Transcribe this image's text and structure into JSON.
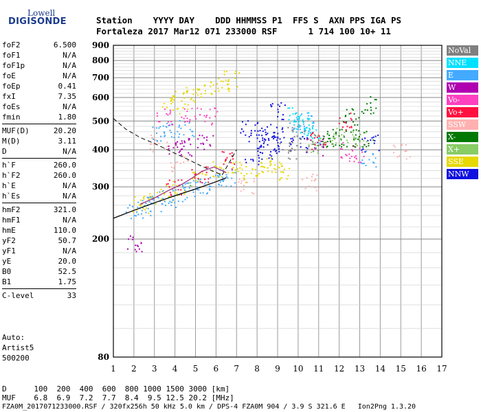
{
  "logo": {
    "top": "Lowell",
    "main": "DIGISONDE"
  },
  "header": {
    "line1": "Station    YYYY DAY    DDD HHMMSS P1  FFS S  AXN PPS IGA PS",
    "line2": "Fortaleza 2017 Mar12 071 233000 RSF      1 714 100 10+ 11"
  },
  "params": [
    {
      "name": "foF2",
      "value": "6.500"
    },
    {
      "name": "foF1",
      "value": "N/A"
    },
    {
      "name": "foF1p",
      "value": "N/A"
    },
    {
      "name": "foE",
      "value": "N/A"
    },
    {
      "name": "foEp",
      "value": "0.41"
    },
    {
      "name": "fxI",
      "value": "7.35"
    },
    {
      "name": "foEs",
      "value": "N/A"
    },
    {
      "name": "fmin",
      "value": "1.80"
    },
    {
      "sep": true
    },
    {
      "name": "MUF(D)",
      "value": "20.20"
    },
    {
      "name": "M(D)",
      "value": "3.11"
    },
    {
      "name": "D",
      "value": "N/A"
    },
    {
      "sep": true
    },
    {
      "name": "h`F",
      "value": "260.0"
    },
    {
      "name": "h`F2",
      "value": "260.0"
    },
    {
      "name": "h`E",
      "value": "N/A"
    },
    {
      "name": "h`Es",
      "value": "N/A"
    },
    {
      "sep": true
    },
    {
      "name": "hmF2",
      "value": "321.0"
    },
    {
      "name": "hmF1",
      "value": "N/A"
    },
    {
      "name": "hmE",
      "value": "110.0"
    },
    {
      "name": "yF2",
      "value": "50.7"
    },
    {
      "name": "yF1",
      "value": "N/A"
    },
    {
      "name": "yE",
      "value": "20.0"
    },
    {
      "name": "B0",
      "value": "52.5"
    },
    {
      "name": "B1",
      "value": "1.75"
    },
    {
      "sep": true
    },
    {
      "name": "C-level",
      "value": "33"
    }
  ],
  "auto": {
    "line1": "Auto:",
    "line2": "Artist5",
    "line3": "500200"
  },
  "footer": {
    "d_line": "D      100  200  400  600  800 1000 1500 3000 [km]",
    "muf_line": "MUF    6.8  6.9  7.2  7.7  8.4  9.5 12.5 20.2 [MHz]",
    "file_line": "FZA0M_2017071233000.RSF / 320fx256h 50 kHz 5.0 km / DPS-4 FZA0M 904 / 3.9 S 321.6 E   Ion2Png 1.3.20"
  },
  "legend": [
    {
      "label": "NoVal",
      "color": "#808080"
    },
    {
      "label": "NNE",
      "color": "#00e0ff"
    },
    {
      "label": "E",
      "color": "#44aaff"
    },
    {
      "label": "W",
      "color": "#b000b0"
    },
    {
      "label": "Vo-",
      "color": "#ff40c0"
    },
    {
      "label": "Vo+",
      "color": "#ff1040"
    },
    {
      "label": "SSW",
      "color": "#ffb0b0"
    },
    {
      "label": "X-",
      "color": "#007800"
    },
    {
      "label": "X+",
      "color": "#88cc66"
    },
    {
      "label": "SSE",
      "color": "#e6d800"
    },
    {
      "label": "NNW",
      "color": "#1010e0"
    }
  ],
  "chart_data": {
    "type": "scatter",
    "title": "",
    "xlabel": "",
    "ylabel": "",
    "xlim": [
      1,
      17
    ],
    "ylim": [
      80,
      900
    ],
    "y_scale": "log",
    "x_ticks": [
      1,
      2,
      3,
      4,
      5,
      6,
      7,
      8,
      9,
      10,
      11,
      12,
      13,
      14,
      15,
      16,
      17
    ],
    "y_ticks": [
      80,
      200,
      300,
      400,
      500,
      600,
      700,
      800,
      900
    ],
    "grid": true,
    "legend_position": "right",
    "series": [
      {
        "name": "SSE",
        "points": [
          [
            2.3,
            262
          ],
          [
            2.8,
            270
          ],
          [
            3.5,
            285
          ],
          [
            4.3,
            300
          ],
          [
            5.2,
            315
          ],
          [
            6.2,
            345
          ],
          [
            6.8,
            360
          ],
          [
            7.6,
            330
          ],
          [
            8.3,
            340
          ],
          [
            8.8,
            360
          ],
          [
            9.2,
            340
          ],
          [
            3.8,
            560
          ],
          [
            4.3,
            590
          ],
          [
            4.9,
            620
          ],
          [
            5.5,
            640
          ],
          [
            6.2,
            660
          ],
          [
            6.8,
            690
          ]
        ]
      },
      {
        "name": "E",
        "points": [
          [
            2.0,
            250
          ],
          [
            2.5,
            258
          ],
          [
            3.0,
            265
          ],
          [
            3.6,
            275
          ],
          [
            4.2,
            285
          ],
          [
            4.8,
            295
          ],
          [
            5.4,
            305
          ],
          [
            6.0,
            315
          ],
          [
            6.5,
            322
          ],
          [
            3.3,
            460
          ],
          [
            3.8,
            470
          ],
          [
            4.5,
            470
          ],
          [
            10.0,
            500
          ],
          [
            10.3,
            490
          ],
          [
            13.4,
            375
          ]
        ]
      },
      {
        "name": "NNW",
        "points": [
          [
            7.6,
            470
          ],
          [
            8.0,
            450
          ],
          [
            8.4,
            430
          ],
          [
            8.8,
            460
          ],
          [
            9.0,
            540
          ],
          [
            7.8,
            380
          ],
          [
            8.5,
            400
          ],
          [
            9.2,
            420
          ],
          [
            10.0,
            420
          ],
          [
            13.5,
            420
          ]
        ]
      },
      {
        "name": "NNE",
        "points": [
          [
            9.9,
            520
          ],
          [
            10.1,
            500
          ],
          [
            10.4,
            470
          ],
          [
            10.6,
            450
          ]
        ]
      },
      {
        "name": "W",
        "points": [
          [
            4.0,
            410
          ],
          [
            4.6,
            410
          ],
          [
            5.4,
            420
          ],
          [
            10.8,
            410
          ],
          [
            2.0,
            192
          ]
        ]
      },
      {
        "name": "Vo-",
        "points": [
          [
            3.5,
            520
          ],
          [
            4.7,
            520
          ],
          [
            5.6,
            520
          ],
          [
            12.4,
            400
          ],
          [
            12.8,
            390
          ]
        ]
      },
      {
        "name": "Vo+",
        "points": [
          [
            4.0,
            300
          ],
          [
            5.2,
            330
          ],
          [
            6.6,
            370
          ],
          [
            11.0,
            430
          ],
          [
            12.3,
            500
          ]
        ]
      },
      {
        "name": "SSW",
        "points": [
          [
            3.2,
            420
          ],
          [
            4.2,
            360
          ],
          [
            7.4,
            300
          ],
          [
            10.6,
            310
          ],
          [
            15.0,
            400
          ]
        ]
      },
      {
        "name": "X-",
        "points": [
          [
            11.3,
            430
          ],
          [
            11.8,
            440
          ],
          [
            12.4,
            440
          ],
          [
            12.6,
            520
          ],
          [
            13.2,
            435
          ],
          [
            13.5,
            570
          ]
        ]
      },
      {
        "name": "X+",
        "points": [
          [
            10.8,
            420
          ],
          [
            12.0,
            445
          ],
          [
            13.0,
            440
          ]
        ]
      },
      {
        "name": "NoVal",
        "points": [
          [
            9.5,
            400
          ],
          [
            9.9,
            450
          ],
          [
            10.8,
            425
          ]
        ]
      }
    ]
  }
}
